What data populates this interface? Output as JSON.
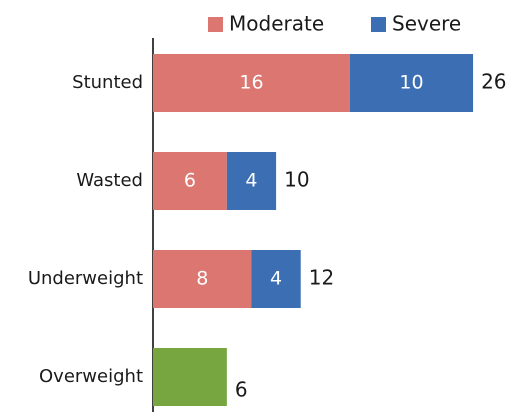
{
  "chart_data": {
    "type": "stacked-bar",
    "orientation": "horizontal",
    "categories": [
      "Stunted",
      "Wasted",
      "Underweight",
      "Overweight"
    ],
    "series": [
      {
        "name": "Moderate",
        "color": "#dc7671",
        "values": [
          16,
          6,
          8,
          null
        ]
      },
      {
        "name": "Severe",
        "color": "#3c6eb4",
        "values": [
          10,
          4,
          4,
          null
        ]
      },
      {
        "color": "#77a641",
        "values": [
          null,
          null,
          null,
          6
        ]
      }
    ],
    "totals": [
      26,
      10,
      12,
      6
    ],
    "xlim": [
      0,
      29
    ]
  }
}
